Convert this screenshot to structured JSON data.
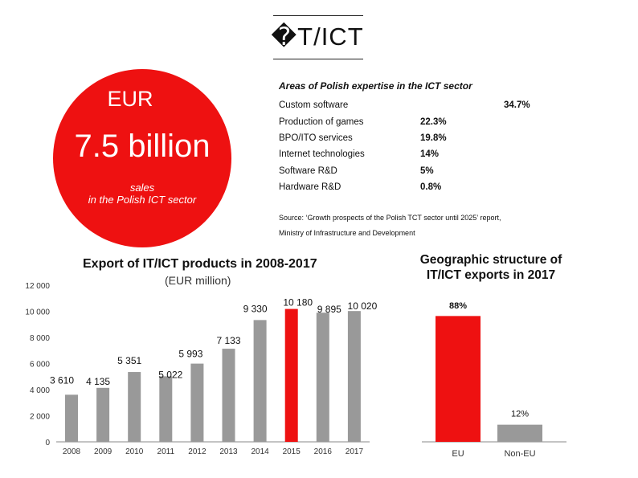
{
  "title": "�T/ICT",
  "headline": {
    "currency": "EUR",
    "value": "7.5 billion",
    "subtitle_line1": "sales",
    "subtitle_line2": "in the Polish ICT sector",
    "circle_color": "#ee1111"
  },
  "expertise": {
    "title": "Areas of Polish expertise in the ICT sector",
    "rows": [
      {
        "name": "Custom software",
        "value": "34.7%"
      },
      {
        "name": "Production of games",
        "value": "22.3%"
      },
      {
        "name": "BPO/ITO services",
        "value": "19.8%"
      },
      {
        "name": "Internet technologies",
        "value": "14%"
      },
      {
        "name": "Software R&D",
        "value": "5%"
      },
      {
        "name": "Hardware R&D",
        "value": "0.8%"
      }
    ],
    "source_line1": "Source: ‘Growth prospects of the Polish TCT sector until 2025’ report,",
    "source_line2": "Ministry of Infrastructure and Development"
  },
  "chart_data": [
    {
      "type": "bar",
      "title": "Export of IT/ICT products in 2008-2017",
      "subtitle": "(EUR million)",
      "categories": [
        "2008",
        "2009",
        "2010",
        "2011",
        "2012",
        "2013",
        "2014",
        "2015",
        "2016",
        "2017"
      ],
      "values": [
        3610,
        4135,
        5351,
        5022,
        5993,
        7133,
        9330,
        10180,
        9895,
        10020
      ],
      "data_labels": [
        "3 610",
        "4 135",
        "5 351",
        "5 022",
        "5 993",
        "7 133",
        "9 330",
        "10 180",
        "9 895",
        "10 020"
      ],
      "y_ticks": [
        0,
        2000,
        4000,
        6000,
        8000,
        10000,
        12000
      ],
      "y_tick_labels": [
        "0",
        "2 000",
        "4 000",
        "6 000",
        "8 000",
        "10 000",
        "12 000"
      ],
      "ylim": [
        0,
        12000
      ],
      "bar_color": "#999999",
      "highlight_category": "2015",
      "highlight_color": "#ee1111",
      "grid": false
    },
    {
      "type": "bar",
      "title": "Geographic structure of IT/ICT exports in 2017",
      "categories": [
        "EU",
        "Non-EU"
      ],
      "values": [
        88,
        12
      ],
      "data_labels": [
        "88%",
        "12%"
      ],
      "colors": [
        "#ee1111",
        "#999999"
      ],
      "ylim": [
        0,
        100
      ]
    }
  ]
}
